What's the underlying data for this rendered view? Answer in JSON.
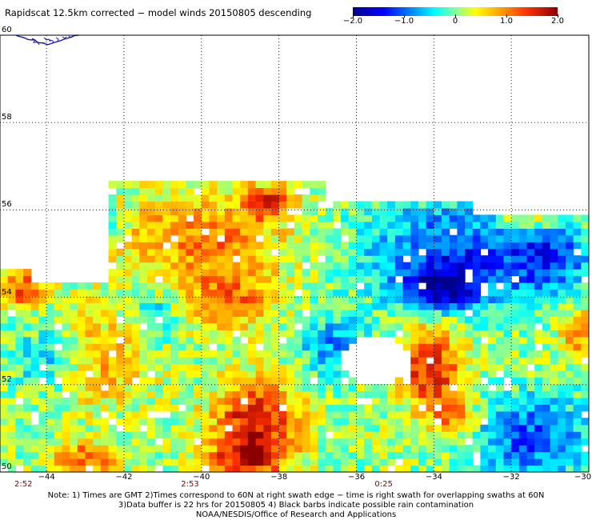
{
  "title": "Rapidscat 12.5km corrected − model winds 20150805 descending",
  "colorbar": {
    "labels": [
      "−2.0",
      "−1.0",
      "0",
      "1.0",
      "2.0"
    ],
    "values": [
      -2.0,
      -1.0,
      0.0,
      1.0,
      2.0
    ]
  },
  "chart_data": {
    "type": "heatmap",
    "title": "Rapidscat 12.5km corrected − model winds 20150805 descending",
    "x_tick_labels": [
      "−44",
      "−42",
      "−40",
      "−38",
      "−36",
      "−34",
      "−32",
      "−30"
    ],
    "x_ticks": [
      -44,
      -42,
      -40,
      -38,
      -36,
      -34,
      -32,
      -30
    ],
    "y_tick_labels": [
      "50",
      "52",
      "54",
      "56",
      "58",
      "60"
    ],
    "y_ticks": [
      50,
      52,
      54,
      56,
      58,
      60
    ],
    "xlim": [
      -45.2,
      -30
    ],
    "ylim": [
      50,
      60
    ],
    "value_range": [
      -2.0,
      2.0
    ],
    "grid": true,
    "time_labels": [
      {
        "text": "2:52",
        "lon": -44.6
      },
      {
        "text": "2:53",
        "lon": -40.3
      },
      {
        "text": "0:25",
        "lon": -35.3
      }
    ],
    "swath_coverage": "lon -45.2 to -30; western edge up to ~54.7N near -45, ~54.2N from -44 to -42.4, ~56.6N from -42.4 to -36.8, ~56.2N east of -36.8; data gap centered near -35.5, 52.5N",
    "regions": [
      {
        "name": "positive (yellow/orange)",
        "lon": [
          -42,
          -38
        ],
        "lat": [
          54,
          56.6
        ]
      },
      {
        "name": "strong positive (red/dark red)",
        "lon": [
          -39.6,
          -37.6
        ],
        "lat": [
          50,
          52.2
        ]
      },
      {
        "name": "strong positive (dark red)",
        "lon": [
          -35,
          -33.4
        ],
        "lat": [
          51.6,
          53.6
        ]
      },
      {
        "name": "negative (blue)",
        "lon": [
          -36,
          -30
        ],
        "lat": [
          53.6,
          56
        ]
      },
      {
        "name": "negative (dark blue)",
        "lon": [
          -34.8,
          -33.2
        ],
        "lat": [
          53.8,
          54.6
        ]
      },
      {
        "name": "negative (blue)",
        "lon": [
          -33,
          -30
        ],
        "lat": [
          50,
          52
        ]
      }
    ]
  },
  "notes": [
    "Note: 1) Times are GMT 2)Times correspond to 60N at right swath edge − time is right swath for overlapping swaths at 60N",
    "3)Data buffer is 22 hrs for 20150805 4) Black barbs indicate possible rain contamination",
    "NOAA/NESDIS/Office of Research and Applications"
  ]
}
